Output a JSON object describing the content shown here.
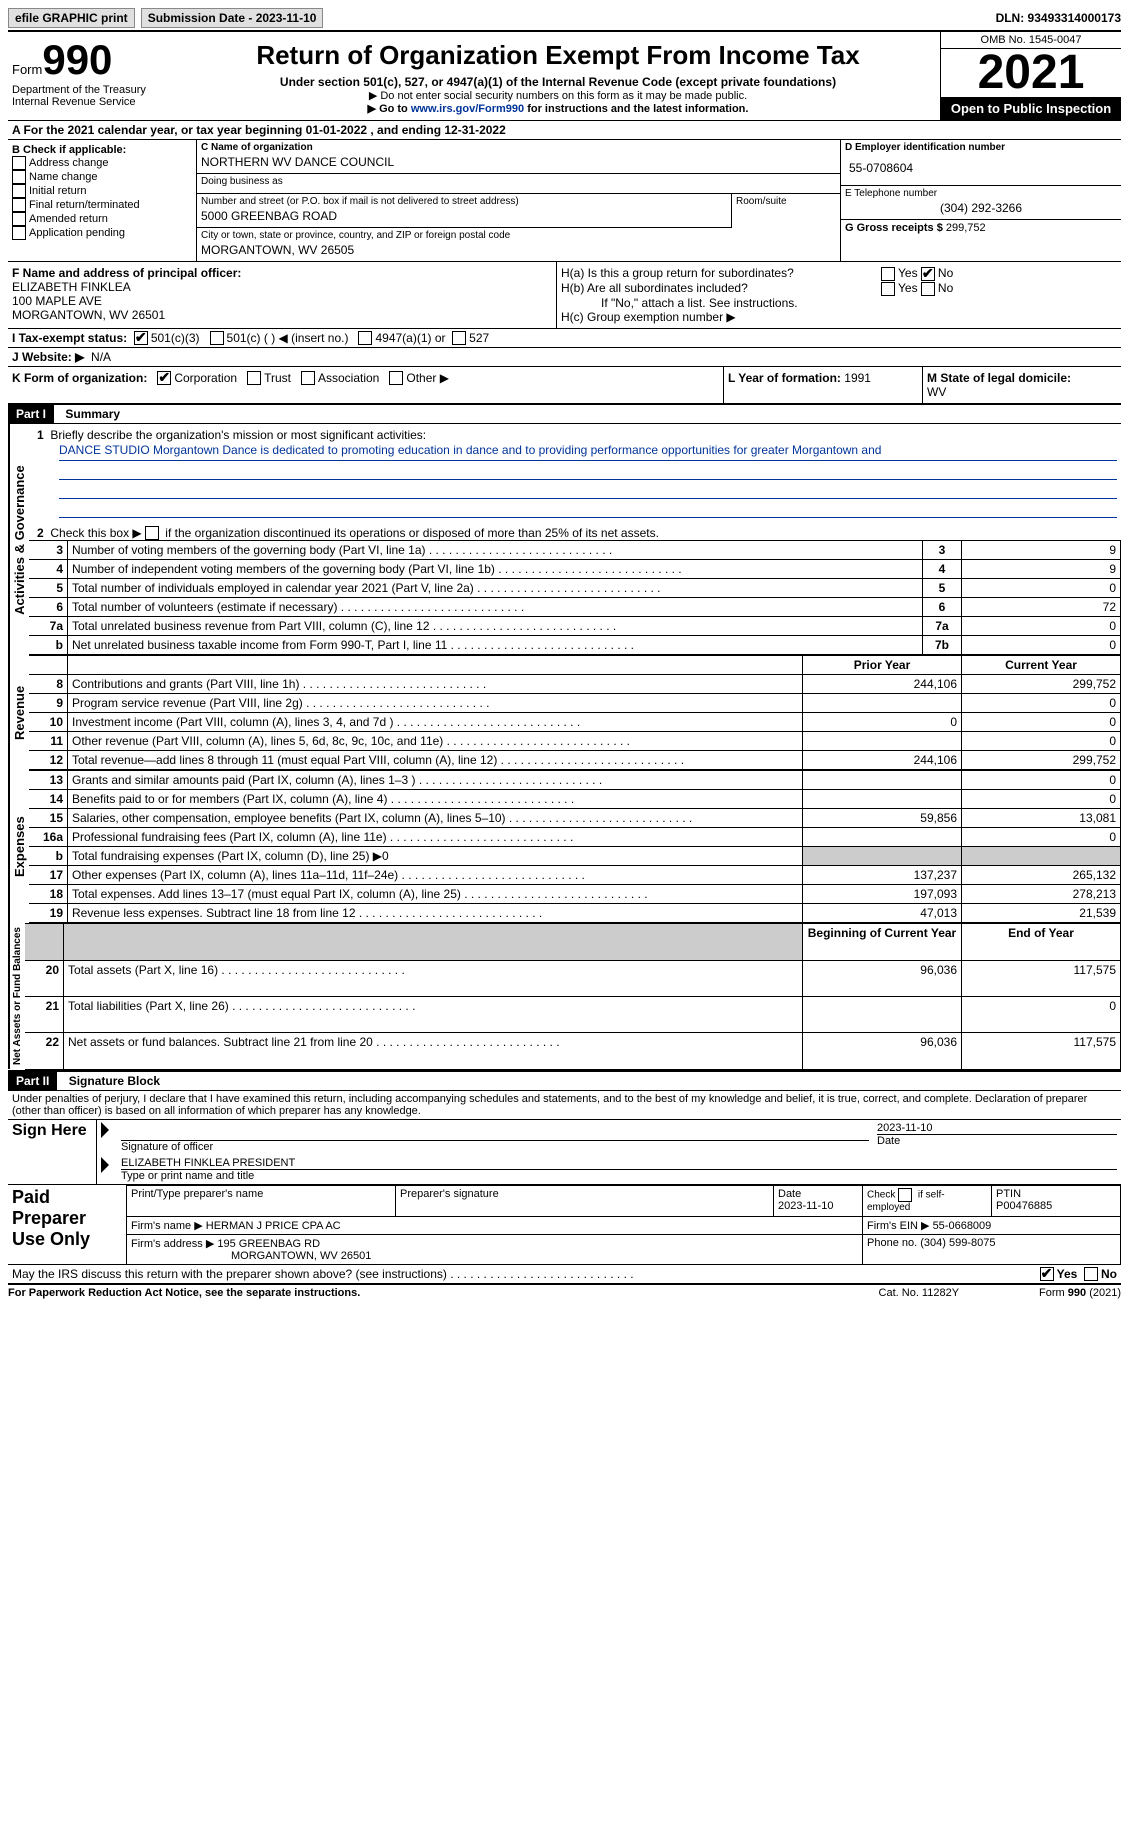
{
  "topbar": {
    "efile": "efile GRAPHIC print",
    "submission_label": "Submission Date - 2023-11-10",
    "dln_label": "DLN: 93493314000173"
  },
  "header": {
    "form_word": "Form",
    "form_no": "990",
    "dept": "Department of the Treasury",
    "irs": "Internal Revenue Service",
    "title": "Return of Organization Exempt From Income Tax",
    "subtitle": "Under section 501(c), 527, or 4947(a)(1) of the Internal Revenue Code (except private foundations)",
    "note1": "▶ Do not enter social security numbers on this form as it may be made public.",
    "note2_pre": "▶ Go to ",
    "note2_link": "www.irs.gov/Form990",
    "note2_post": " for instructions and the latest information.",
    "omb": "OMB No. 1545-0047",
    "year": "2021",
    "inspect": "Open to Public Inspection"
  },
  "lineA": "A For the 2021 calendar year, or tax year beginning 01-01-2022    , and ending 12-31-2022",
  "colB": {
    "label": "B Check if applicable:",
    "items": [
      "Address change",
      "Name change",
      "Initial return",
      "Final return/terminated",
      "Amended return",
      "Application pending"
    ]
  },
  "colC": {
    "name_lbl": "C Name of organization",
    "name": "NORTHERN WV DANCE COUNCIL",
    "dba_lbl": "Doing business as",
    "dba": "",
    "street_lbl": "Number and street (or P.O. box if mail is not delivered to street address)",
    "street": "5000 GREENBAG ROAD",
    "room_lbl": "Room/suite",
    "city_lbl": "City or town, state or province, country, and ZIP or foreign postal code",
    "city": "MORGANTOWN, WV  26505"
  },
  "colD": {
    "ein_lbl": "D Employer identification number",
    "ein": "55-0708604",
    "phone_lbl": "E Telephone number",
    "phone": "(304) 292-3266",
    "gross_lbl": "G Gross receipts $",
    "gross": "299,752"
  },
  "officer": {
    "lbl": "F Name and address of principal officer:",
    "name": "ELIZABETH FINKLEA",
    "addr1": "100 MAPLE AVE",
    "addr2": "MORGANTOWN, WV  26501"
  },
  "h": {
    "a_lbl": "H(a)  Is this a group return for subordinates?",
    "b_lbl": "H(b)  Are all subordinates included?",
    "b_note": "If \"No,\" attach a list. See instructions.",
    "c_lbl": "H(c)  Group exemption number ▶"
  },
  "taxstatus": {
    "lbl": "I   Tax-exempt status:",
    "c3": "501(c)(3)",
    "c": "501(c) (  ) ◀ (insert no.)",
    "a1": "4947(a)(1) or",
    "s527": "527"
  },
  "website": {
    "lbl": "J   Website: ▶",
    "val": "N/A"
  },
  "formorg": {
    "lbl": "K Form of organization:",
    "corp": "Corporation",
    "trust": "Trust",
    "assoc": "Association",
    "other": "Other ▶"
  },
  "yearform": {
    "lbl": "L Year of formation:",
    "val": "1991"
  },
  "domicile": {
    "lbl": "M State of legal domicile:",
    "val": "WV"
  },
  "part1": {
    "hdr": "Part I",
    "title": "Summary"
  },
  "mission": {
    "lbl": "Briefly describe the organization's mission or most significant activities:",
    "text": "DANCE STUDIO Morgantown Dance is dedicated to promoting education in dance and to providing performance opportunities for greater Morgantown and"
  },
  "line2": "Check this box ▶          if the organization discontinued its operations or disposed of more than 25% of its net assets.",
  "summary": {
    "sideA": "Activities & Governance",
    "sideR": "Revenue",
    "sideE": "Expenses",
    "sideN": "Net Assets or Fund Balances",
    "cols": {
      "prior": "Prior Year",
      "current": "Current Year",
      "boy": "Beginning of Current Year",
      "eoy": "End of Year"
    },
    "rows": [
      {
        "n": "3",
        "d": "Number of voting members of the governing body (Part VI, line 1a)",
        "box": "3",
        "v": "9"
      },
      {
        "n": "4",
        "d": "Number of independent voting members of the governing body (Part VI, line 1b)",
        "box": "4",
        "v": "9"
      },
      {
        "n": "5",
        "d": "Total number of individuals employed in calendar year 2021 (Part V, line 2a)",
        "box": "5",
        "v": "0"
      },
      {
        "n": "6",
        "d": "Total number of volunteers (estimate if necessary)",
        "box": "6",
        "v": "72"
      },
      {
        "n": "7a",
        "d": "Total unrelated business revenue from Part VIII, column (C), line 12",
        "box": "7a",
        "v": "0"
      },
      {
        "n": "b",
        "d": "Net unrelated business taxable income from Form 990-T, Part I, line 11",
        "box": "7b",
        "v": "0"
      }
    ],
    "rev": [
      {
        "n": "8",
        "d": "Contributions and grants (Part VIII, line 1h)",
        "p": "244,106",
        "c": "299,752"
      },
      {
        "n": "9",
        "d": "Program service revenue (Part VIII, line 2g)",
        "p": "",
        "c": "0"
      },
      {
        "n": "10",
        "d": "Investment income (Part VIII, column (A), lines 3, 4, and 7d )",
        "p": "0",
        "c": "0"
      },
      {
        "n": "11",
        "d": "Other revenue (Part VIII, column (A), lines 5, 6d, 8c, 9c, 10c, and 11e)",
        "p": "",
        "c": "0"
      },
      {
        "n": "12",
        "d": "Total revenue—add lines 8 through 11 (must equal Part VIII, column (A), line 12)",
        "p": "244,106",
        "c": "299,752"
      }
    ],
    "exp": [
      {
        "n": "13",
        "d": "Grants and similar amounts paid (Part IX, column (A), lines 1–3 )",
        "p": "",
        "c": "0"
      },
      {
        "n": "14",
        "d": "Benefits paid to or for members (Part IX, column (A), line 4)",
        "p": "",
        "c": "0"
      },
      {
        "n": "15",
        "d": "Salaries, other compensation, employee benefits (Part IX, column (A), lines 5–10)",
        "p": "59,856",
        "c": "13,081"
      },
      {
        "n": "16a",
        "d": "Professional fundraising fees (Part IX, column (A), line 11e)",
        "p": "",
        "c": "0"
      },
      {
        "n": "b",
        "d": "Total fundraising expenses (Part IX, column (D), line 25) ▶0",
        "shade": true
      },
      {
        "n": "17",
        "d": "Other expenses (Part IX, column (A), lines 11a–11d, 11f–24e)",
        "p": "137,237",
        "c": "265,132"
      },
      {
        "n": "18",
        "d": "Total expenses. Add lines 13–17 (must equal Part IX, column (A), line 25)",
        "p": "197,093",
        "c": "278,213"
      },
      {
        "n": "19",
        "d": "Revenue less expenses. Subtract line 18 from line 12",
        "p": "47,013",
        "c": "21,539"
      }
    ],
    "net": [
      {
        "n": "20",
        "d": "Total assets (Part X, line 16)",
        "p": "96,036",
        "c": "117,575"
      },
      {
        "n": "21",
        "d": "Total liabilities (Part X, line 26)",
        "p": "",
        "c": "0"
      },
      {
        "n": "22",
        "d": "Net assets or fund balances. Subtract line 21 from line 20",
        "p": "96,036",
        "c": "117,575"
      }
    ]
  },
  "part2": {
    "hdr": "Part II",
    "title": "Signature Block"
  },
  "sig": {
    "penalty": "Under penalties of perjury, I declare that I have examined this return, including accompanying schedules and statements, and to the best of my knowledge and belief, it is true, correct, and complete. Declaration of preparer (other than officer) is based on all information of which preparer has any knowledge.",
    "sign_here": "Sign Here",
    "sig_officer": "Signature of officer",
    "date": "Date",
    "date_val": "2023-11-10",
    "typed_name": "ELIZABETH FINKLEA  PRESIDENT",
    "typed_lbl": "Type or print name and title",
    "paid": "Paid Preparer Use Only",
    "prep_name_lbl": "Print/Type preparer's name",
    "prep_sig_lbl": "Preparer's signature",
    "prep_date_lbl": "Date",
    "prep_date": "2023-11-10",
    "check_self": "Check          if self-employed",
    "ptin_lbl": "PTIN",
    "ptin": "P00476885",
    "firm_name_lbl": "Firm's name     ▶",
    "firm_name": "HERMAN J PRICE CPA AC",
    "firm_ein_lbl": "Firm's EIN ▶",
    "firm_ein": "55-0668009",
    "firm_addr_lbl": "Firm's address ▶",
    "firm_addr1": "195 GREENBAG RD",
    "firm_addr2": "MORGANTOWN, WV  26501",
    "firm_phone_lbl": "Phone no.",
    "firm_phone": "(304) 599-8075",
    "discuss": "May the IRS discuss this return with the preparer shown above? (see instructions)",
    "yes": "Yes",
    "no": "No"
  },
  "footer": {
    "pra": "For Paperwork Reduction Act Notice, see the separate instructions.",
    "cat": "Cat. No. 11282Y",
    "form": "Form 990 (2021)"
  }
}
